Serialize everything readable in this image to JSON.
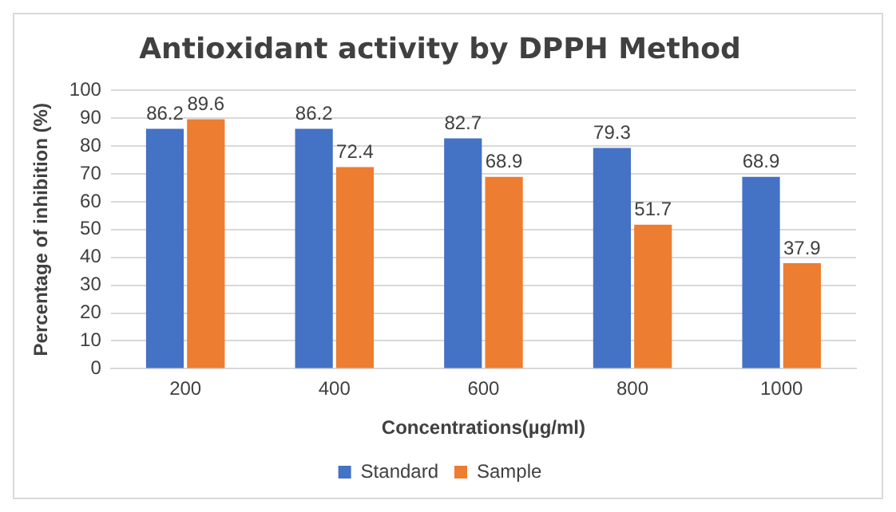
{
  "chart_data": {
    "type": "bar",
    "title": "Antioxidant activity by DPPH Method",
    "xlabel": "Concentrations(µg/ml)",
    "ylabel": "Percentage of inhibition (%)",
    "categories": [
      "200",
      "400",
      "600",
      "800",
      "1000"
    ],
    "series": [
      {
        "name": "Standard",
        "color": "#4472c4",
        "values": [
          86.2,
          86.2,
          82.7,
          79.3,
          68.9
        ]
      },
      {
        "name": "Sample",
        "color": "#ed7d31",
        "values": [
          89.6,
          72.4,
          68.9,
          51.7,
          37.9
        ]
      }
    ],
    "ylim": [
      0,
      100
    ],
    "yticks": [
      0,
      10,
      20,
      30,
      40,
      50,
      60,
      70,
      80,
      90,
      100
    ],
    "grid": "y",
    "legend": "bottom",
    "data_labels": true
  }
}
